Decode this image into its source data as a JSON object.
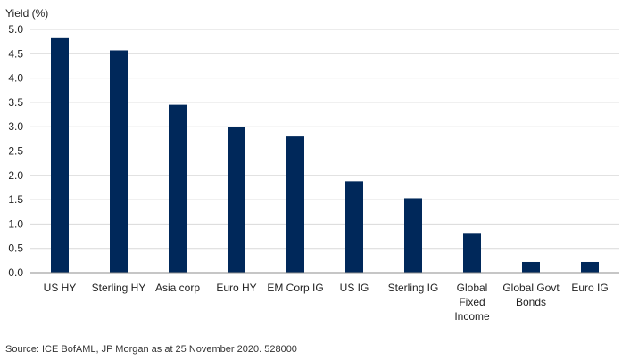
{
  "chart_data": {
    "type": "bar",
    "ylabel": "Yield (%)",
    "categories": [
      [
        "US HY"
      ],
      [
        "Sterling HY"
      ],
      [
        "Asia corp"
      ],
      [
        "Euro HY"
      ],
      [
        "EM Corp IG"
      ],
      [
        "US IG"
      ],
      [
        "Sterling IG"
      ],
      [
        "Global",
        "Fixed",
        "Income"
      ],
      [
        "Global Govt",
        "Bonds"
      ],
      [
        "Euro IG"
      ]
    ],
    "values": [
      4.82,
      4.57,
      3.45,
      3.0,
      2.8,
      1.88,
      1.53,
      0.8,
      0.22,
      0.22
    ],
    "ylim": [
      0,
      5.0
    ],
    "yticks": [
      "0.0",
      "0.5",
      "1.0",
      "1.5",
      "2.0",
      "2.5",
      "3.0",
      "3.5",
      "4.0",
      "4.5",
      "5.0"
    ],
    "grid": true,
    "legend": "none",
    "colors": {
      "bar": "#00285a",
      "grid": "#d9d9d9",
      "axis": "#8c8c8c"
    }
  },
  "source": "Source: ICE BofAML, JP Morgan as at 25 November 2020. 528000"
}
